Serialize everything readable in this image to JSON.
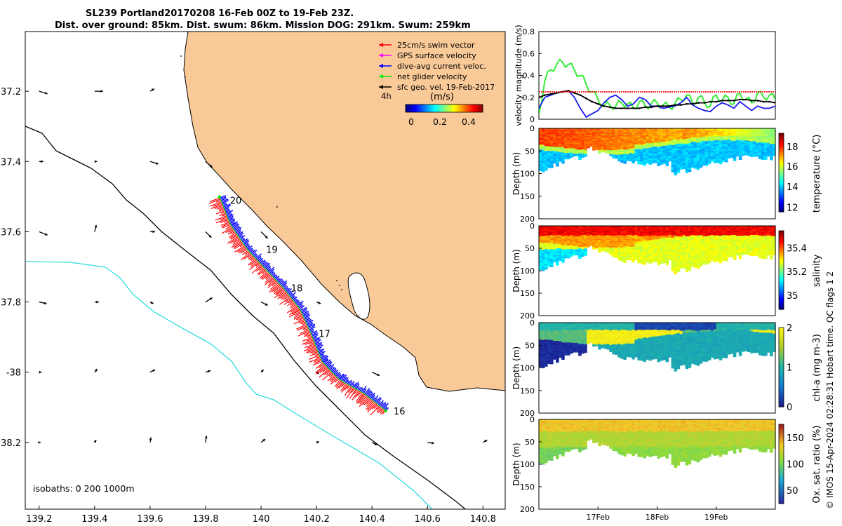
{
  "header": {
    "line1": "SL239 Portland20170208 16-Feb 00Z to 19-Feb 23Z.",
    "line2": "Dist. over ground: 85km. Dist. swum: 86km. Mission DOG: 291km. Swum: 259km"
  },
  "credit": "© IMOS 15-Apr-2024 02:28:31 Hobart time. QC flags 1  2",
  "colors": {
    "land": "#f9c997",
    "swim_vector": "#ff0000",
    "gps_velocity": "#ff00ff",
    "dive_avg": "#0000ff",
    "net_velocity": "#00ee00",
    "geo_velocity": "#000000",
    "isobath_200": "#000000",
    "isobath_1000": "#33dddd"
  },
  "chart_data": [
    {
      "type": "scatter",
      "name": "map",
      "xlim": [
        139.15,
        140.88
      ],
      "ylim": [
        -38.39,
        -37.03
      ],
      "x_ticks": [
        139.2,
        139.4,
        139.6,
        139.8,
        140,
        140.2,
        140.4,
        140.6,
        140.8
      ],
      "x_tick_labels": [
        "139.2",
        "139.4",
        "139.6",
        "139.8",
        "140",
        "140.2",
        "140.4",
        "140.6",
        "140.8"
      ],
      "y_ticks": [
        -37.2,
        -37.4,
        -37.6,
        -37.8,
        -38,
        -38.2
      ],
      "y_tick_labels": [
        "37.2",
        "37.4",
        "37.6",
        "37.8",
        "-38",
        "38.2"
      ],
      "legend": {
        "position": "top-right",
        "items": [
          "25cm/s swim vector",
          "GPS surface velocity",
          "dive-avg current veloc.",
          "net glider velocity",
          "sfc geo. vel. 19-Feb-2017"
        ],
        "interval_label": "4h",
        "colorbar_title": "(m/s)",
        "colorbar_ticks": [
          "0",
          "0.2",
          "0.4"
        ]
      },
      "isobaths_label": "isobaths: 0   200  1000m",
      "track": [
        {
          "lon": 140.45,
          "lat": -38.11
        },
        {
          "lon": 140.37,
          "lat": -38.06
        },
        {
          "lon": 140.28,
          "lat": -38.02
        },
        {
          "lon": 140.22,
          "lat": -37.97
        },
        {
          "lon": 140.18,
          "lat": -37.89
        },
        {
          "lon": 140.14,
          "lat": -37.82
        },
        {
          "lon": 140.08,
          "lat": -37.76
        },
        {
          "lon": 140.02,
          "lat": -37.71
        },
        {
          "lon": 139.95,
          "lat": -37.65
        },
        {
          "lon": 139.89,
          "lat": -37.58
        },
        {
          "lon": 139.85,
          "lat": -37.5
        }
      ],
      "day_markers": [
        {
          "label": "16",
          "lon": 140.45,
          "lat": -38.11
        },
        {
          "label": "17",
          "lon": 140.18,
          "lat": -37.89
        },
        {
          "label": "18",
          "lon": 140.08,
          "lat": -37.76
        },
        {
          "label": "19",
          "lon": 139.99,
          "lat": -37.65
        },
        {
          "label": "20",
          "lon": 139.86,
          "lat": -37.51
        }
      ],
      "geo_vectors": [
        {
          "lon": 139.2,
          "lat": -37.2,
          "u": 1,
          "v": -0.3
        },
        {
          "lon": 139.4,
          "lat": -37.2,
          "u": 1,
          "v": 0
        },
        {
          "lon": 139.6,
          "lat": -37.2,
          "u": 0.5,
          "v": 0.3
        },
        {
          "lon": 139.2,
          "lat": -37.4,
          "u": 0.5,
          "v": 0
        },
        {
          "lon": 139.4,
          "lat": -37.4,
          "u": 0.3,
          "v": 0
        },
        {
          "lon": 139.6,
          "lat": -37.4,
          "u": 1,
          "v": -0.3
        },
        {
          "lon": 139.8,
          "lat": -37.4,
          "u": 0.8,
          "v": -0.7
        },
        {
          "lon": 139.2,
          "lat": -37.6,
          "u": 1,
          "v": -0.4
        },
        {
          "lon": 139.4,
          "lat": -37.6,
          "u": 0.2,
          "v": 0.8
        },
        {
          "lon": 139.6,
          "lat": -37.6,
          "u": 0.6,
          "v": 0
        },
        {
          "lon": 139.8,
          "lat": -37.6,
          "u": 0.7,
          "v": -0.7
        },
        {
          "lon": 140.0,
          "lat": -37.6,
          "u": 0.8,
          "v": -0.8
        },
        {
          "lon": 139.2,
          "lat": -37.8,
          "u": 0.9,
          "v": -0.2
        },
        {
          "lon": 139.4,
          "lat": -37.8,
          "u": 0.5,
          "v": 0
        },
        {
          "lon": 139.6,
          "lat": -37.8,
          "u": 0.4,
          "v": -0.2
        },
        {
          "lon": 139.8,
          "lat": -37.8,
          "u": 0.8,
          "v": 0.5
        },
        {
          "lon": 140.0,
          "lat": -37.8,
          "u": 0.8,
          "v": -0.4
        },
        {
          "lon": 140.2,
          "lat": -37.8,
          "u": 0.5,
          "v": -0.2
        },
        {
          "lon": 139.2,
          "lat": -38.0,
          "u": 0.3,
          "v": 0
        },
        {
          "lon": 139.4,
          "lat": -38.0,
          "u": 0.3,
          "v": 0.4
        },
        {
          "lon": 139.6,
          "lat": -38.0,
          "u": 0.6,
          "v": 0.3
        },
        {
          "lon": 139.8,
          "lat": -38.0,
          "u": 0.6,
          "v": 0.2
        },
        {
          "lon": 140.0,
          "lat": -38.0,
          "u": 0.3,
          "v": 0.3
        },
        {
          "lon": 140.2,
          "lat": -38.0,
          "u": 0.3,
          "v": -0.2
        },
        {
          "lon": 140.4,
          "lat": -38.0,
          "u": 0.9,
          "v": -0.4
        },
        {
          "lon": 139.2,
          "lat": -38.2,
          "u": 0.2,
          "v": 0
        },
        {
          "lon": 139.4,
          "lat": -38.2,
          "u": 0.2,
          "v": 0.3
        },
        {
          "lon": 139.6,
          "lat": -38.2,
          "u": 0.1,
          "v": 0.6
        },
        {
          "lon": 139.8,
          "lat": -38.2,
          "u": 0.1,
          "v": 0.8
        },
        {
          "lon": 140.0,
          "lat": -38.2,
          "u": 0.5,
          "v": 0.4
        },
        {
          "lon": 140.2,
          "lat": -38.2,
          "u": 0.3,
          "v": 0.1
        },
        {
          "lon": 140.4,
          "lat": -38.2,
          "u": 0.6,
          "v": -0.3
        },
        {
          "lon": 140.6,
          "lat": -38.2,
          "u": 0.8,
          "v": -0.1
        },
        {
          "lon": 140.8,
          "lat": -38.2,
          "u": 0.5,
          "v": 0.3
        }
      ]
    },
    {
      "type": "line",
      "name": "velocity-timeseries",
      "ylabel": "velocity magnitude (m/s)",
      "ylim": [
        0,
        0.8
      ],
      "y_ticks": [
        0,
        0.2,
        0.4,
        0.6,
        0.8
      ],
      "y_tick_labels": [
        "0",
        "0.2",
        "0.4",
        "0.6",
        "0.8"
      ],
      "xlim": [
        16.0,
        20.0
      ],
      "x": [
        16.0,
        16.1,
        16.2,
        16.3,
        16.4,
        16.5,
        16.6,
        16.7,
        16.8,
        16.9,
        17.0,
        17.1,
        17.2,
        17.3,
        17.4,
        17.5,
        17.6,
        17.7,
        17.8,
        17.9,
        18.0,
        18.1,
        18.2,
        18.3,
        18.4,
        18.5,
        18.6,
        18.7,
        18.8,
        18.9,
        19.0,
        19.1,
        19.2,
        19.3,
        19.4,
        19.5,
        19.6,
        19.7,
        19.8,
        19.9,
        20.0
      ],
      "series": [
        {
          "color": "green",
          "values": [
            0.05,
            0.35,
            0.45,
            0.5,
            0.52,
            0.5,
            0.45,
            0.4,
            0.32,
            0.25,
            0.18,
            0.12,
            0.13,
            0.12,
            0.15,
            0.14,
            0.1,
            0.16,
            0.12,
            0.14,
            0.15,
            0.13,
            0.11,
            0.14,
            0.18,
            0.22,
            0.15,
            0.2,
            0.16,
            0.12,
            0.22,
            0.17,
            0.2,
            0.14,
            0.24,
            0.18,
            0.15,
            0.24,
            0.2,
            0.22,
            0.18
          ]
        },
        {
          "color": "blue",
          "values": [
            0.1,
            0.2,
            0.22,
            0.24,
            0.25,
            0.26,
            0.2,
            0.1,
            0.02,
            0.05,
            0.08,
            0.15,
            0.2,
            0.22,
            0.18,
            0.12,
            0.14,
            0.2,
            0.18,
            0.12,
            0.12,
            0.1,
            0.11,
            0.12,
            0.15,
            0.2,
            0.13,
            0.1,
            0.08,
            0.07,
            0.12,
            0.15,
            0.13,
            0.1,
            0.16,
            0.12,
            0.08,
            0.12,
            0.1,
            0.1,
            0.12
          ]
        },
        {
          "color": "black",
          "values": [
            0.2,
            0.22,
            0.23,
            0.24,
            0.25,
            0.26,
            0.24,
            0.22,
            0.19,
            0.16,
            0.14,
            0.12,
            0.11,
            0.1,
            0.1,
            0.1,
            0.1,
            0.1,
            0.11,
            0.11,
            0.12,
            0.12,
            0.12,
            0.13,
            0.13,
            0.14,
            0.14,
            0.15,
            0.15,
            0.16,
            0.16,
            0.17,
            0.17,
            0.17,
            0.18,
            0.18,
            0.17,
            0.17,
            0.16,
            0.16,
            0.15
          ]
        },
        {
          "color": "red",
          "values": [
            0.25,
            0.25,
            0.25,
            0.25,
            0.25,
            0.25,
            0.25,
            0.25,
            0.25,
            0.25,
            0.25,
            0.25,
            0.25,
            0.25,
            0.25,
            0.25,
            0.25,
            0.25,
            0.25,
            0.25,
            0.25,
            0.25,
            0.25,
            0.25,
            0.25,
            0.25,
            0.25,
            0.25,
            0.25,
            0.25,
            0.25,
            0.25,
            0.25,
            0.25,
            0.25,
            0.25,
            0.25,
            0.25,
            0.25,
            0.25,
            0.25
          ]
        }
      ]
    },
    {
      "type": "heatmap",
      "name": "temperature-section",
      "ylabel": "Depth (m)",
      "colorbar_label": "temperature (°C)",
      "colorbar_ticks": [
        "12",
        "14",
        "16",
        "18"
      ],
      "clim": [
        11,
        19.5
      ],
      "ylim": [
        200,
        0
      ],
      "y_ticks": [
        "0",
        "50",
        "100",
        "150",
        "200"
      ]
    },
    {
      "type": "heatmap",
      "name": "salinity-section",
      "ylabel": "Depth (m)",
      "colorbar_label": "salinity",
      "colorbar_ticks": [
        "35",
        "35.2",
        "35.4"
      ],
      "clim": [
        34.9,
        35.55
      ],
      "ylim": [
        200,
        0
      ],
      "y_ticks": [
        "0",
        "50",
        "100",
        "150",
        "200"
      ]
    },
    {
      "type": "heatmap",
      "name": "chla-section",
      "ylabel": "Depth (m)",
      "colorbar_label": "chl-a (mg m-3)",
      "colorbar_ticks": [
        "0",
        "1",
        "2"
      ],
      "clim": [
        0,
        2
      ],
      "ylim": [
        200,
        0
      ],
      "y_ticks": [
        "0",
        "50",
        "100",
        "150",
        "200"
      ]
    },
    {
      "type": "heatmap",
      "name": "oxygen-section",
      "ylabel": "Depth (m)",
      "colorbar_label": "Ox. sat. ratio (%)",
      "colorbar_ticks": [
        "50",
        "100",
        "150"
      ],
      "clim": [
        25,
        175
      ],
      "ylim": [
        200,
        0
      ],
      "y_ticks": [
        "0",
        "50",
        "100",
        "150",
        "200"
      ],
      "x_tick_labels": [
        "17Feb",
        "18Feb",
        "19Feb"
      ]
    }
  ]
}
